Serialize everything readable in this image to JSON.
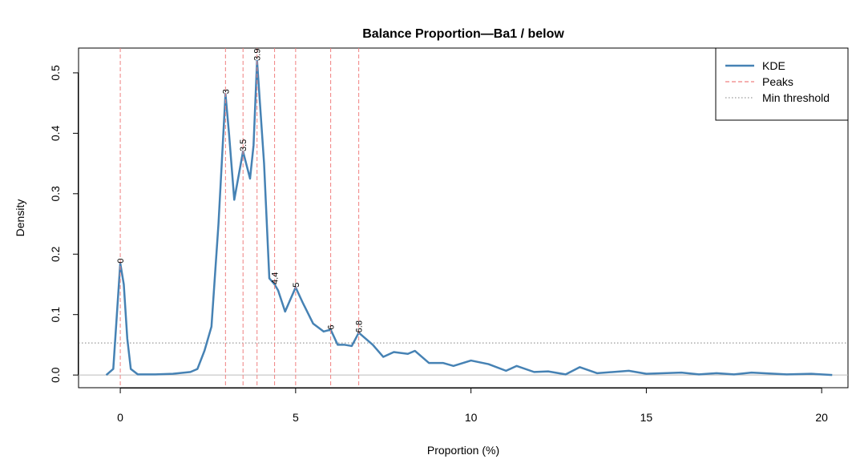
{
  "chart_data": {
    "type": "line",
    "title": "Balance Proportion—Ba1 / below",
    "x_label": "Proportion (%)",
    "y_label": "Density",
    "x": [
      -0.4,
      -0.2,
      0,
      0.1,
      0.2,
      0.3,
      0.5,
      1.0,
      1.5,
      2.0,
      2.2,
      2.4,
      2.6,
      2.8,
      3.0,
      3.1,
      3.25,
      3.5,
      3.7,
      3.8,
      3.9,
      4.1,
      4.25,
      4.4,
      4.5,
      4.7,
      5.0,
      5.2,
      5.5,
      5.8,
      6.0,
      6.2,
      6.4,
      6.6,
      6.8,
      7.2,
      7.5,
      7.8,
      8.2,
      8.4,
      8.8,
      9.2,
      9.5,
      10.0,
      10.5,
      11.0,
      11.3,
      11.8,
      12.2,
      12.7,
      13.1,
      13.6,
      14.5,
      15.0,
      16.0,
      16.5,
      17.0,
      17.5,
      18.0,
      19.0,
      19.7,
      20.3
    ],
    "series": [
      {
        "name": "KDE",
        "color": "#4682b4",
        "values": [
          0,
          0.01,
          0.185,
          0.15,
          0.06,
          0.01,
          0.001,
          0.001,
          0.002,
          0.005,
          0.01,
          0.04,
          0.08,
          0.25,
          0.465,
          0.4,
          0.29,
          0.37,
          0.325,
          0.38,
          0.52,
          0.35,
          0.16,
          0.15,
          0.14,
          0.105,
          0.145,
          0.12,
          0.085,
          0.072,
          0.075,
          0.05,
          0.05,
          0.048,
          0.07,
          0.05,
          0.03,
          0.038,
          0.035,
          0.04,
          0.02,
          0.02,
          0.015,
          0.024,
          0.018,
          0.007,
          0.015,
          0.005,
          0.006,
          0.001,
          0.013,
          0.003,
          0.007,
          0.002,
          0.004,
          0.001,
          0.003,
          0.001,
          0.004,
          0.001,
          0.002,
          0
        ]
      }
    ],
    "peaks": {
      "name": "Peaks",
      "color": "#f08080",
      "x": [
        0,
        3,
        3.5,
        3.9,
        4.4,
        5,
        6,
        6.8
      ]
    },
    "threshold": {
      "name": "Min threshold",
      "color": "#808080",
      "value": 0.053
    },
    "xlim": [
      -1.19,
      20.75
    ],
    "ylim": [
      -0.021,
      0.541
    ],
    "xticks": [
      0,
      5,
      10,
      15,
      20
    ],
    "yticks": [
      {
        "value": 0,
        "label": "0.0"
      },
      0.1,
      0.2,
      0.3,
      0.4,
      0.5
    ],
    "legend": "top-right"
  }
}
